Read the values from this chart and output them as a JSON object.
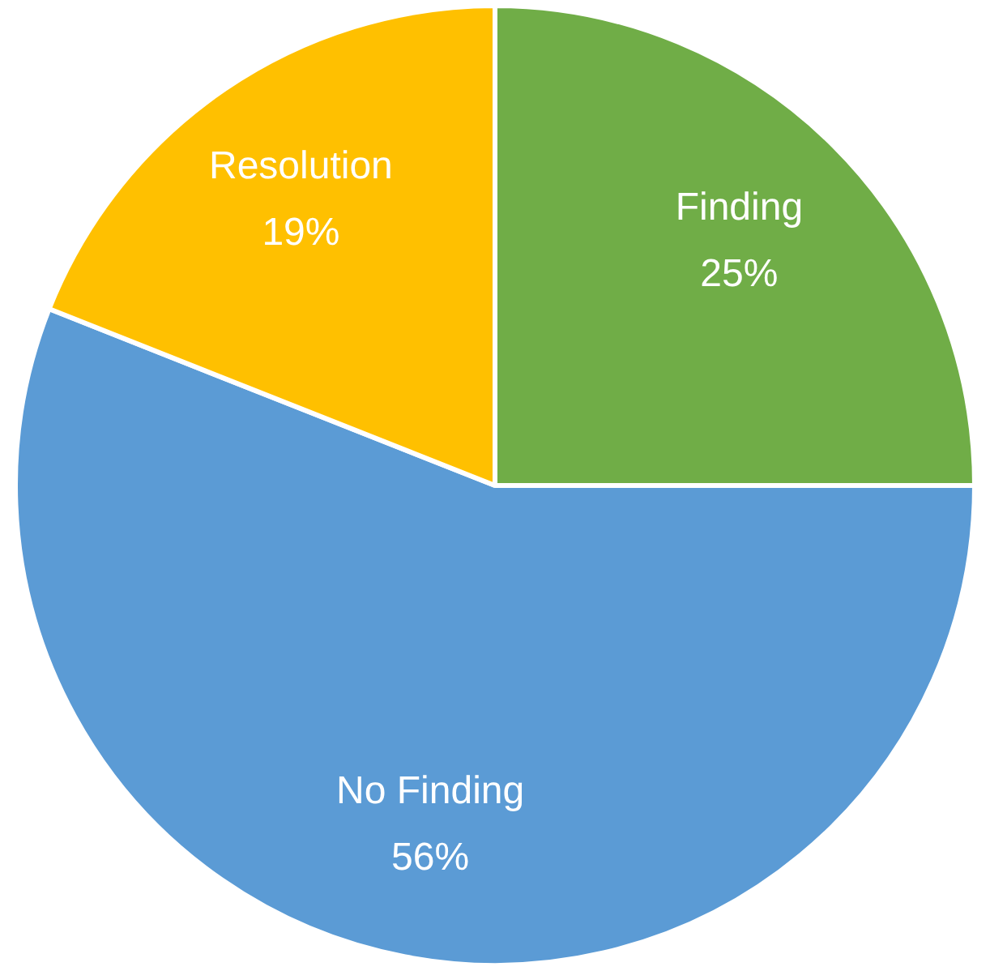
{
  "chart_data": {
    "type": "pie",
    "categories": [
      "Finding",
      "No Finding",
      "Resolution"
    ],
    "values": [
      25,
      56,
      19
    ],
    "colors": [
      "#70ad47",
      "#5b9bd5",
      "#ffc000"
    ],
    "value_labels": [
      "25%",
      "56%",
      "19%"
    ],
    "legend": false
  }
}
